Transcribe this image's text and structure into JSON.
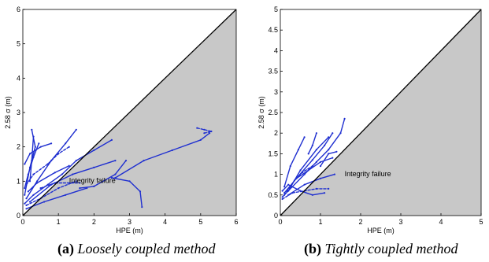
{
  "chart_data": [
    {
      "type": "scatter",
      "xlabel": "HPE (m)",
      "ylabel": "2.58 σ (m)",
      "xlim": [
        0,
        6
      ],
      "ylim": [
        0,
        6
      ],
      "xticks": [
        "0",
        "1",
        "2",
        "3",
        "4",
        "5",
        "6"
      ],
      "yticks": [
        "0",
        "1",
        "2",
        "3",
        "4",
        "5",
        "6"
      ],
      "annotation": "Integrity failure",
      "region_label_position": [
        1.3,
        0.95
      ],
      "diagonal": [
        [
          0,
          0
        ],
        [
          6,
          6
        ]
      ],
      "series_color": "#1f2fd0",
      "failure_fill": "#c8c8c8",
      "tracks": [
        [
          [
            0.05,
            0.35
          ],
          [
            0.3,
            0.6
          ],
          [
            0.7,
            0.9
          ],
          [
            1.1,
            1.2
          ],
          [
            1.5,
            1.6
          ],
          [
            2.0,
            1.9
          ],
          [
            2.5,
            2.2
          ]
        ],
        [
          [
            0.1,
            0.5
          ],
          [
            0.4,
            1.0
          ],
          [
            0.8,
            1.6
          ],
          [
            1.2,
            2.1
          ],
          [
            1.5,
            2.5
          ]
        ],
        [
          [
            0.05,
            0.6
          ],
          [
            0.2,
            1.4
          ],
          [
            0.35,
            2.0
          ],
          [
            0.25,
            2.5
          ]
        ],
        [
          [
            0.1,
            0.3
          ],
          [
            0.5,
            0.5
          ],
          [
            1.0,
            0.8
          ],
          [
            1.5,
            1.0
          ]
        ],
        [
          [
            0.2,
            0.4
          ],
          [
            0.8,
            0.9
          ],
          [
            1.4,
            1.2
          ],
          [
            2.0,
            1.4
          ],
          [
            2.6,
            1.6
          ]
        ],
        [
          [
            0.05,
            0.8
          ],
          [
            0.15,
            1.2
          ],
          [
            0.3,
            1.7
          ],
          [
            0.45,
            2.1
          ]
        ],
        [
          [
            0.1,
            0.2
          ],
          [
            0.6,
            0.4
          ],
          [
            1.2,
            0.6
          ],
          [
            1.8,
            0.8
          ]
        ],
        [
          [
            0.1,
            0.9
          ],
          [
            0.3,
            1.2
          ],
          [
            0.7,
            1.5
          ],
          [
            1.0,
            1.8
          ],
          [
            1.3,
            2.0
          ]
        ],
        [
          [
            0.15,
            0.7
          ],
          [
            0.4,
            0.95
          ],
          [
            0.9,
            1.25
          ],
          [
            1.3,
            1.45
          ]
        ],
        [
          [
            0.05,
            1.5
          ],
          [
            0.2,
            1.8
          ],
          [
            0.5,
            2.0
          ],
          [
            0.8,
            2.1
          ]
        ],
        [
          [
            0.2,
            1.0
          ],
          [
            0.25,
            1.6
          ],
          [
            0.3,
            2.3
          ]
        ],
        [
          [
            0.5,
            0.8
          ],
          [
            0.9,
            0.95
          ],
          [
            1.6,
            0.95
          ]
        ],
        [
          [
            1.6,
            0.8
          ],
          [
            2.0,
            0.85
          ],
          [
            2.6,
            1.2
          ],
          [
            2.9,
            1.6
          ]
        ],
        [
          [
            2.5,
            1.1
          ],
          [
            3.0,
            1.0
          ],
          [
            3.3,
            0.7
          ],
          [
            3.35,
            0.25
          ]
        ],
        [
          [
            2.6,
            1.1
          ],
          [
            3.4,
            1.6
          ],
          [
            4.2,
            1.9
          ],
          [
            5.0,
            2.2
          ],
          [
            5.25,
            2.4
          ]
        ],
        [
          [
            4.9,
            2.55
          ],
          [
            5.1,
            2.5
          ],
          [
            5.3,
            2.45
          ],
          [
            5.1,
            2.4
          ]
        ]
      ]
    },
    {
      "type": "scatter",
      "xlabel": "HPE (m)",
      "ylabel": "2.58 σ (m)",
      "xlim": [
        0,
        5
      ],
      "ylim": [
        0,
        5
      ],
      "xticks": [
        "0",
        "1",
        "2",
        "3",
        "4",
        "5"
      ],
      "yticks": [
        "0",
        "0.5",
        "1",
        "1.5",
        "2",
        "2.5",
        "3",
        "3.5",
        "4",
        "4.5",
        "5"
      ],
      "annotation": "Integrity failure",
      "region_label_position": [
        1.6,
        0.95
      ],
      "diagonal": [
        [
          0,
          0
        ],
        [
          5,
          5
        ]
      ],
      "series_color": "#1f2fd0",
      "failure_fill": "#c8c8c8",
      "tracks": [
        [
          [
            0.05,
            0.45
          ],
          [
            0.3,
            0.7
          ],
          [
            0.6,
            1.0
          ],
          [
            0.9,
            1.3
          ],
          [
            1.2,
            1.6
          ],
          [
            1.5,
            2.0
          ],
          [
            1.6,
            2.35
          ]
        ],
        [
          [
            0.1,
            0.55
          ],
          [
            0.4,
            0.9
          ],
          [
            0.8,
            1.35
          ],
          [
            1.1,
            1.7
          ],
          [
            1.3,
            2.0
          ]
        ],
        [
          [
            0.2,
            0.6
          ],
          [
            0.5,
            1.1
          ],
          [
            0.9,
            1.6
          ],
          [
            1.2,
            1.9
          ]
        ],
        [
          [
            0.05,
            0.4
          ],
          [
            0.3,
            0.55
          ],
          [
            0.6,
            0.6
          ],
          [
            0.9,
            0.65
          ],
          [
            1.2,
            0.65
          ]
        ],
        [
          [
            0.1,
            0.7
          ],
          [
            0.25,
            1.2
          ],
          [
            0.45,
            1.6
          ],
          [
            0.6,
            1.9
          ]
        ],
        [
          [
            0.2,
            0.5
          ],
          [
            0.6,
            0.75
          ],
          [
            1.0,
            0.9
          ],
          [
            1.35,
            1.0
          ]
        ],
        [
          [
            0.4,
            0.9
          ],
          [
            0.7,
            1.1
          ],
          [
            1.0,
            1.3
          ],
          [
            1.3,
            1.4
          ]
        ],
        [
          [
            0.1,
            0.5
          ],
          [
            0.35,
            0.85
          ],
          [
            0.55,
            1.05
          ],
          [
            0.8,
            1.2
          ]
        ],
        [
          [
            1.0,
            1.2
          ],
          [
            1.2,
            1.5
          ],
          [
            1.4,
            1.55
          ]
        ],
        [
          [
            0.7,
            1.5
          ],
          [
            0.8,
            1.7
          ],
          [
            0.9,
            2.0
          ]
        ],
        [
          [
            0.05,
            0.6
          ],
          [
            0.2,
            0.75
          ],
          [
            0.5,
            0.6
          ],
          [
            0.8,
            0.5
          ],
          [
            1.1,
            0.55
          ]
        ]
      ]
    }
  ],
  "captions": [
    {
      "label": "(a)",
      "text": "Loosely coupled method"
    },
    {
      "label": "(b)",
      "text": "Tightly coupled method"
    }
  ]
}
